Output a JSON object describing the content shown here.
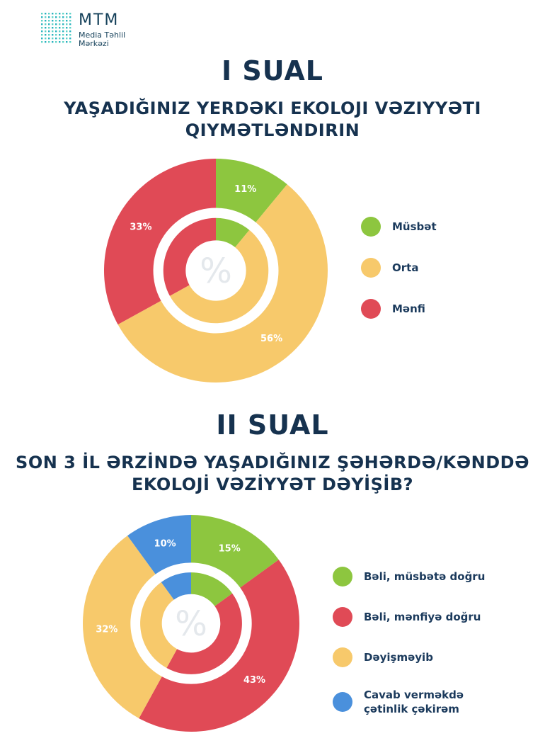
{
  "logo": {
    "title": "MTM",
    "subtitle_line1": "Media Təhlil",
    "subtitle_line2": "Mərkəzi"
  },
  "colors": {
    "green": "#8dc63f",
    "yellow": "#f7c96b",
    "red": "#e04a56",
    "blue": "#4a90dc",
    "title": "#16324f"
  },
  "sections": [
    {
      "heading": "I SUAL",
      "question_line1": "YAŞADIĞINIZ YERDƏKI EKOLOJI VƏZIYYƏTI",
      "question_line2": "QIYMƏTLƏNDIRIN"
    },
    {
      "heading": "II SUAL",
      "question_line1": "SON 3 İL ƏRZİNDƏ YAŞADIĞINIZ ŞƏHƏRDƏ/KƏNDDƏ",
      "question_line2": "EKOLOJİ VƏZİYYƏT DƏYİŞİB?"
    }
  ],
  "chart_data": [
    {
      "type": "pie",
      "center_symbol": "%",
      "categories": [
        "Müsbət",
        "Orta",
        "Mənfi"
      ],
      "values": [
        11,
        56,
        33
      ],
      "labels": [
        "11%",
        "56%",
        "33%"
      ],
      "colors": [
        "#8dc63f",
        "#f7c96b",
        "#e04a56"
      ],
      "legend_position": "right"
    },
    {
      "type": "pie",
      "center_symbol": "%",
      "categories": [
        "Bəli, müsbətə doğru",
        "Bəli, mənfiyə doğru",
        "Dəyişməyib",
        "Cavab verməkdə çətinlik çəkirəm"
      ],
      "legend_lines": [
        [
          "Bəli, müsbətə doğru"
        ],
        [
          "Bəli, mənfiyə doğru"
        ],
        [
          "Dəyişməyib"
        ],
        [
          "Cavab verməkdə",
          "çətinlik çəkirəm"
        ]
      ],
      "values": [
        15,
        43,
        32,
        10
      ],
      "labels": [
        "15%",
        "43%",
        "32%",
        "10%"
      ],
      "colors": [
        "#8dc63f",
        "#e04a56",
        "#f7c96b",
        "#4a90dc"
      ],
      "legend_position": "right"
    }
  ]
}
